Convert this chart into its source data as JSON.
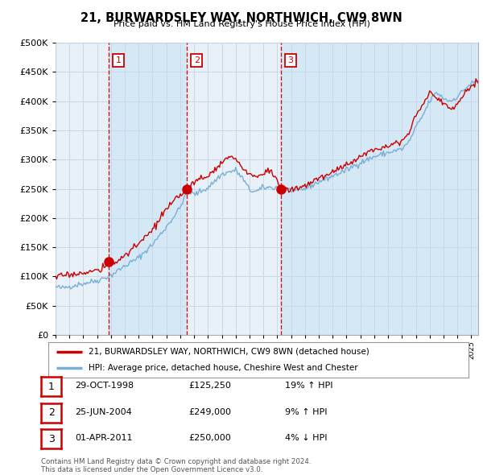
{
  "title": "21, BURWARDSLEY WAY, NORTHWICH, CW9 8WN",
  "subtitle": "Price paid vs. HM Land Registry's House Price Index (HPI)",
  "ytick_values": [
    0,
    50000,
    100000,
    150000,
    200000,
    250000,
    300000,
    350000,
    400000,
    450000,
    500000
  ],
  "ylim": [
    0,
    500000
  ],
  "xmin": 1995.0,
  "xmax": 2025.5,
  "sales": [
    {
      "date_num": 1998.83,
      "price": 125250,
      "label": "1"
    },
    {
      "date_num": 2004.48,
      "price": 249000,
      "label": "2"
    },
    {
      "date_num": 2011.25,
      "price": 250000,
      "label": "3"
    }
  ],
  "vline_dates": [
    1998.83,
    2004.48,
    2011.25
  ],
  "legend_property_label": "21, BURWARDSLEY WAY, NORTHWICH, CW9 8WN (detached house)",
  "legend_hpi_label": "HPI: Average price, detached house, Cheshire West and Chester",
  "table_rows": [
    {
      "num": "1",
      "date": "29-OCT-1998",
      "price": "£125,250",
      "change": "19% ↑ HPI"
    },
    {
      "num": "2",
      "date": "25-JUN-2004",
      "price": "£249,000",
      "change": "9% ↑ HPI"
    },
    {
      "num": "3",
      "date": "01-APR-2011",
      "price": "£250,000",
      "change": "4% ↓ HPI"
    }
  ],
  "footer": "Contains HM Land Registry data © Crown copyright and database right 2024.\nThis data is licensed under the Open Government Licence v3.0.",
  "property_color": "#cc0000",
  "hpi_color": "#7aafd4",
  "vline_color": "#cc0000",
  "fill_color": "#ddeeff",
  "grid_color": "#c8d8e8",
  "background_color": "#ffffff",
  "chart_bg_color": "#e8f0f8"
}
